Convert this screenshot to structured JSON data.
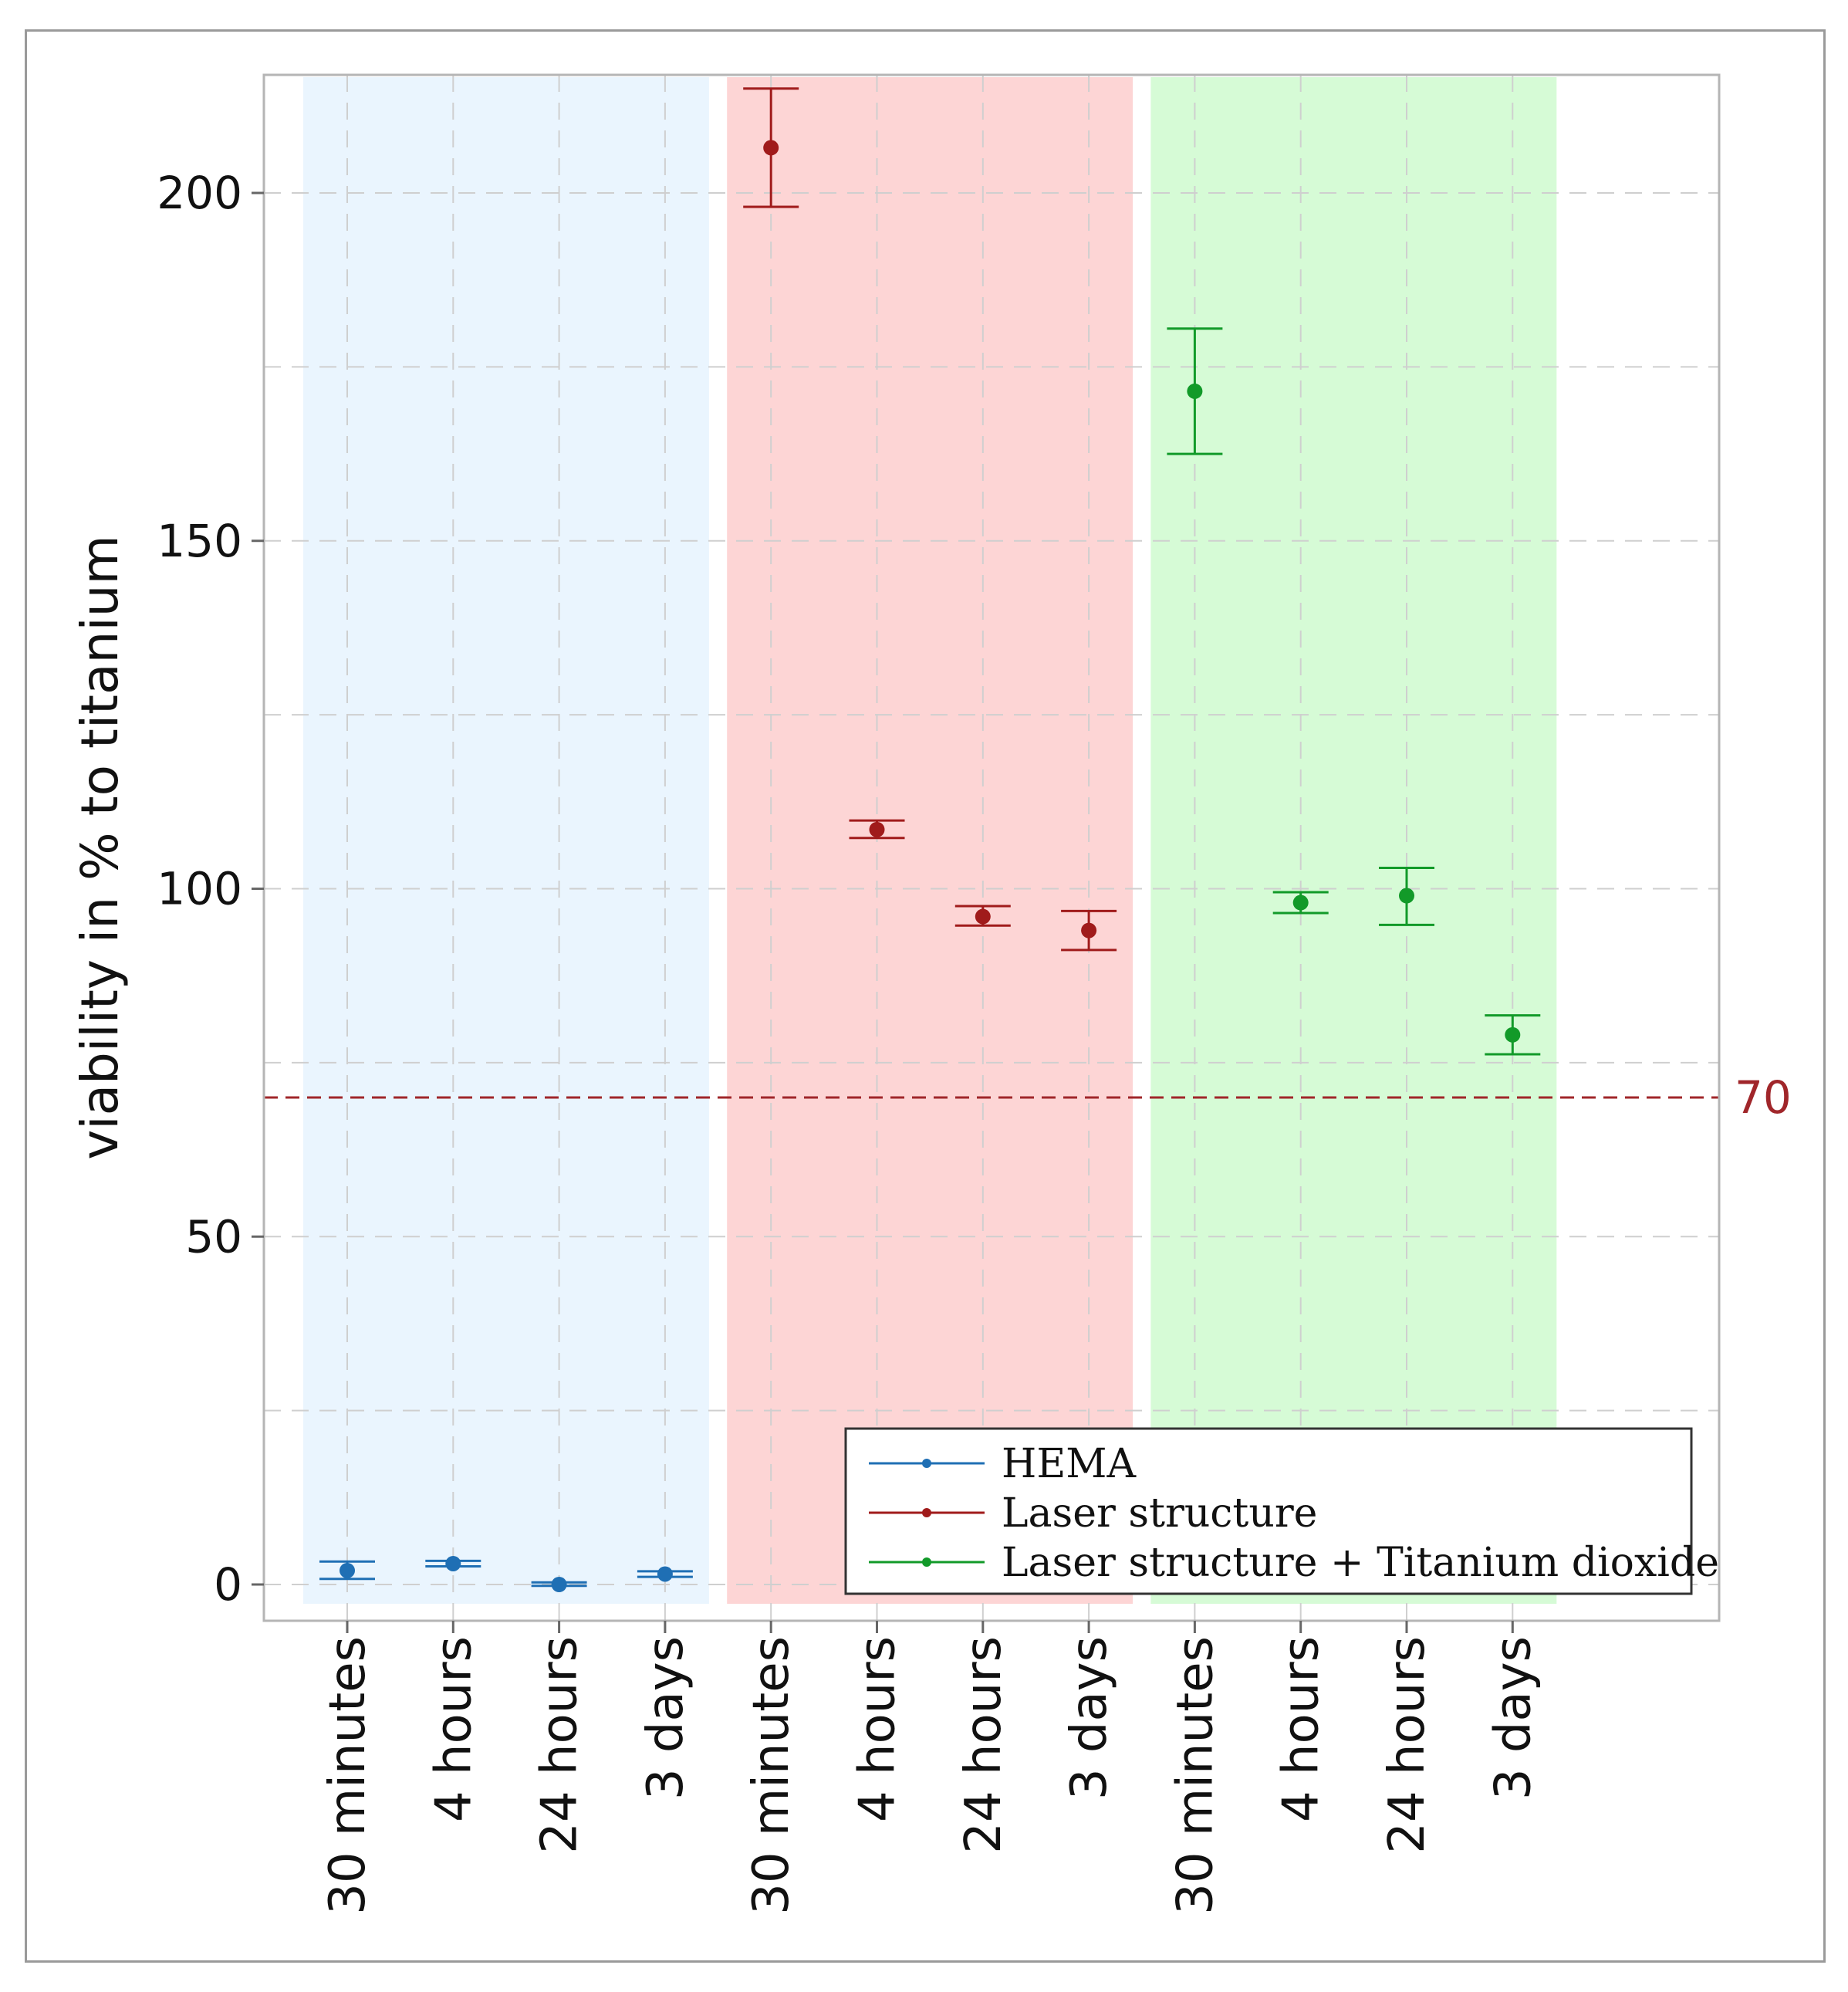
{
  "chart_data": {
    "type": "scatter",
    "ylabel": "viability in % to titanium",
    "xlabel": "",
    "ylim": [
      -5,
      217
    ],
    "yticks": [
      0,
      50,
      100,
      150,
      200
    ],
    "grid": true,
    "legend_position": "bottom-right",
    "reference_line": {
      "value": 70,
      "label": "70",
      "color": "#a0262a",
      "style": "dashed"
    },
    "groups": [
      {
        "series": "HEMA",
        "shade": "#eaf5fe"
      },
      {
        "series": "Laser structure",
        "shade": "#fdd5d5"
      },
      {
        "series": "Laser structure + Titanium dioxide",
        "shade": "#d6fbd6"
      }
    ],
    "categories": [
      "30 minutes",
      "4 hours",
      "24 hours",
      "3 days",
      "30 minutes",
      "4 hours",
      "24 hours",
      "3 days",
      "30 minutes",
      "4 hours",
      "24 hours",
      "3 days"
    ],
    "series": [
      {
        "name": "HEMA",
        "color": "#1f6fb4",
        "x_index": [
          0,
          1,
          2,
          3
        ],
        "values": [
          2,
          3,
          0,
          1.5
        ],
        "error_low": [
          0.8,
          2.6,
          -0.2,
          1.1
        ],
        "error_high": [
          3.3,
          3.4,
          0.3,
          1.9
        ]
      },
      {
        "name": "Laser structure",
        "color": "#a01b1b",
        "x_index": [
          4,
          5,
          6,
          7
        ],
        "values": [
          206.5,
          108.5,
          96,
          94
        ],
        "error_low": [
          198,
          107.3,
          94.7,
          91.2
        ],
        "error_high": [
          215,
          109.8,
          97.5,
          96.8
        ]
      },
      {
        "name": "Laser structure + Titanium dioxide",
        "color": "#129a29",
        "x_index": [
          8,
          9,
          10,
          11
        ],
        "values": [
          171.5,
          98,
          99,
          79
        ],
        "error_low": [
          162.5,
          96.5,
          94.8,
          76.2
        ],
        "error_high": [
          180.5,
          99.5,
          103,
          81.8
        ]
      }
    ]
  }
}
